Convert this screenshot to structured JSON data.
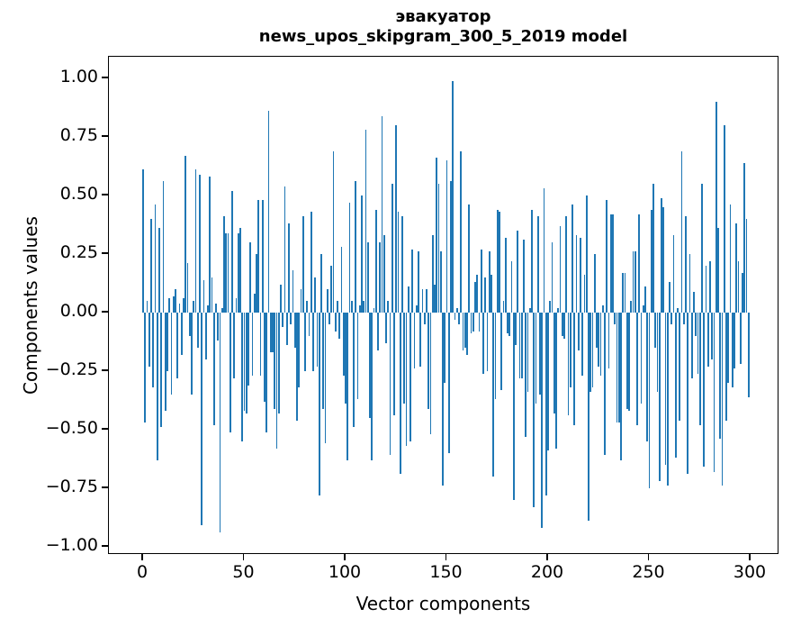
{
  "chart_data": {
    "type": "bar",
    "title_line1": "эвакуатор",
    "title_line2": "news_upos_skipgram_300_5_2019 model",
    "xlabel": "Vector components",
    "ylabel": "Components values",
    "bar_color": "#1f77b4",
    "axis_color": "#000000",
    "background_color": "#ffffff",
    "grid": false,
    "legend": null,
    "xlim": [
      -16.9,
      314.2
    ],
    "ylim": [
      -1.035,
      1.092
    ],
    "x_ticks": [
      {
        "label": "0",
        "value": 0
      },
      {
        "label": "50",
        "value": 50
      },
      {
        "label": "100",
        "value": 100
      },
      {
        "label": "150",
        "value": 150
      },
      {
        "label": "200",
        "value": 200
      },
      {
        "label": "250",
        "value": 250
      },
      {
        "label": "300",
        "value": 300
      }
    ],
    "y_ticks": [
      {
        "label": "1.00",
        "value": 1.0
      },
      {
        "label": "0.75",
        "value": 0.75
      },
      {
        "label": "0.50",
        "value": 0.5
      },
      {
        "label": "0.25",
        "value": 0.25
      },
      {
        "label": "0.00",
        "value": 0.0
      },
      {
        "label": "−0.25",
        "value": -0.25
      },
      {
        "label": "−0.50",
        "value": -0.5
      },
      {
        "label": "−0.75",
        "value": -0.75
      },
      {
        "label": "−1.00",
        "value": -1.0
      }
    ],
    "x": "component index 0..299",
    "values": [
      0.61,
      -0.47,
      0.05,
      -0.23,
      0.4,
      -0.32,
      0.46,
      -0.63,
      0.36,
      -0.49,
      0.56,
      -0.42,
      -0.25,
      0.06,
      -0.35,
      0.07,
      0.1,
      -0.28,
      0.04,
      -0.18,
      0.06,
      0.67,
      0.21,
      -0.1,
      -0.35,
      0.05,
      0.61,
      -0.15,
      0.59,
      -0.91,
      0.14,
      -0.2,
      0.03,
      0.58,
      0.15,
      -0.48,
      0.04,
      -0.12,
      -0.94,
      0.02,
      0.41,
      0.34,
      0.34,
      -0.51,
      0.52,
      -0.28,
      0.06,
      0.34,
      0.36,
      -0.55,
      -0.42,
      -0.43,
      -0.31,
      0.3,
      -0.27,
      0.08,
      0.25,
      0.48,
      -0.27,
      0.48,
      -0.38,
      -0.51,
      0.86,
      -0.17,
      -0.17,
      -0.41,
      -0.58,
      -0.43,
      0.12,
      -0.06,
      0.54,
      -0.14,
      0.38,
      -0.05,
      0.18,
      -0.15,
      -0.46,
      -0.32,
      0.1,
      0.41,
      -0.25,
      0.05,
      -0.1,
      0.43,
      -0.25,
      0.15,
      -0.23,
      -0.78,
      0.25,
      -0.41,
      -0.56,
      0.1,
      -0.05,
      0.2,
      0.69,
      -0.08,
      0.05,
      -0.11,
      0.28,
      -0.27,
      -0.39,
      -0.63,
      0.47,
      0.05,
      -0.49,
      0.56,
      -0.37,
      0.03,
      0.5,
      0.05,
      0.78,
      0.3,
      -0.45,
      -0.63,
      0.02,
      0.44,
      -0.16,
      0.3,
      0.84,
      0.33,
      -0.13,
      0.05,
      -0.61,
      0.55,
      -0.44,
      0.8,
      0.43,
      -0.69,
      0.41,
      -0.39,
      -0.57,
      0.11,
      -0.55,
      0.27,
      -0.24,
      0.03,
      0.26,
      -0.23,
      0.1,
      -0.05,
      0.1,
      -0.41,
      -0.52,
      0.33,
      0.12,
      0.66,
      0.55,
      0.26,
      -0.74,
      -0.3,
      0.65,
      -0.6,
      0.56,
      0.99,
      -0.03,
      0.02,
      -0.05,
      0.69,
      -0.16,
      -0.15,
      -0.18,
      0.46,
      -0.09,
      -0.08,
      0.13,
      0.16,
      -0.08,
      0.27,
      -0.26,
      0.15,
      -0.25,
      0.26,
      0.16,
      -0.7,
      -0.37,
      0.44,
      0.43,
      -0.33,
      0.05,
      0.32,
      -0.09,
      -0.1,
      0.22,
      -0.8,
      -0.14,
      0.35,
      -0.28,
      -0.28,
      0.31,
      -0.53,
      -0.34,
      0.02,
      0.44,
      -0.83,
      -0.39,
      0.41,
      -0.35,
      -0.92,
      0.53,
      -0.78,
      -0.59,
      0.05,
      0.3,
      -0.43,
      -0.58,
      0.02,
      0.37,
      -0.1,
      -0.11,
      0.41,
      -0.44,
      -0.32,
      0.46,
      -0.48,
      0.33,
      -0.16,
      0.32,
      -0.27,
      0.16,
      0.5,
      -0.89,
      -0.34,
      -0.32,
      0.25,
      -0.15,
      -0.23,
      -0.27,
      0.03,
      -0.61,
      0.48,
      -0.24,
      0.42,
      0.42,
      -0.05,
      -0.47,
      -0.47,
      -0.63,
      0.17,
      0.17,
      -0.41,
      -0.42,
      0.05,
      0.26,
      0.26,
      -0.48,
      0.42,
      -0.39,
      0.03,
      0.11,
      -0.55,
      -0.75,
      0.44,
      0.55,
      -0.15,
      -0.34,
      -0.72,
      0.49,
      0.45,
      -0.65,
      -0.74,
      0.13,
      -0.05,
      0.33,
      -0.62,
      0.02,
      -0.46,
      0.69,
      -0.05,
      0.41,
      -0.69,
      0.25,
      -0.28,
      0.09,
      -0.1,
      -0.26,
      -0.48,
      0.55,
      -0.66,
      0.2,
      -0.23,
      0.22,
      -0.2,
      -0.68,
      0.9,
      0.36,
      -0.54,
      -0.74,
      0.8,
      -0.46,
      -0.3,
      0.46,
      -0.32,
      -0.24,
      0.38,
      0.22,
      -0.22,
      0.17,
      0.64,
      0.4,
      -0.36
    ]
  }
}
